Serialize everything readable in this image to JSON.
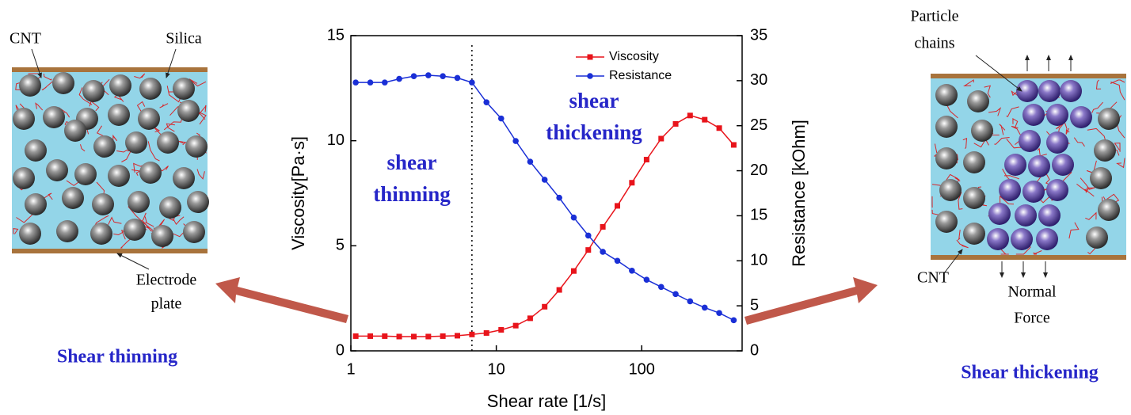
{
  "chart_data": {
    "type": "line",
    "x_label": "Shear rate [1/s]",
    "y_label": "Viscosity[Pa·s]",
    "y2_label": "Resistance [kOhm]",
    "log_x": true,
    "xlim": [
      1,
      490
    ],
    "xticks": [
      1,
      10,
      100
    ],
    "ylim": [
      0,
      15
    ],
    "yticks": [
      0,
      5,
      10,
      15
    ],
    "y2lim": [
      0,
      35
    ],
    "y2ticks": [
      0,
      5,
      10,
      15,
      20,
      25,
      30,
      35
    ],
    "legend": "upper right",
    "reference_line_x": 6.8,
    "annotations": [
      [
        "shear",
        "thinning"
      ],
      [
        "shear",
        "thickening"
      ]
    ],
    "x": [
      1.08,
      1.36,
      1.71,
      2.15,
      2.71,
      3.41,
      4.29,
      5.4,
      6.8,
      8.56,
      10.8,
      13.6,
      17.1,
      21.5,
      27.1,
      34.1,
      42.9,
      54,
      68,
      85.6,
      108,
      136,
      171,
      215,
      271,
      341,
      429
    ],
    "series": [
      {
        "name": "Viscosity",
        "color": "#e8141b",
        "marker": "square",
        "values": [
          0.7,
          0.7,
          0.7,
          0.68,
          0.68,
          0.68,
          0.7,
          0.72,
          0.78,
          0.85,
          1.0,
          1.2,
          1.55,
          2.1,
          2.9,
          3.8,
          4.8,
          5.9,
          6.9,
          8.0,
          9.1,
          10.1,
          10.8,
          11.2,
          11.0,
          10.6,
          9.8
        ]
      },
      {
        "name": "Resistance",
        "color": "#1a2fd6",
        "marker": "circle",
        "axis": "y2",
        "values": [
          29.8,
          29.8,
          29.8,
          30.2,
          30.5,
          30.6,
          30.5,
          30.3,
          29.8,
          27.6,
          25.8,
          23.3,
          21.0,
          19.0,
          17.0,
          14.8,
          12.8,
          11.0,
          10.0,
          8.9,
          7.9,
          7.1,
          6.3,
          5.5,
          4.8,
          4.2,
          3.4
        ]
      }
    ]
  },
  "left_panel": {
    "cnt": "CNT",
    "silica": "Silica",
    "electrode": [
      "Electrode",
      "plate"
    ],
    "caption": "Shear thinning"
  },
  "right_panel": {
    "chains": [
      "Particle",
      "chains"
    ],
    "cnt": "CNT",
    "force": [
      "Normal",
      "Force"
    ],
    "caption": "Shear thickening"
  }
}
